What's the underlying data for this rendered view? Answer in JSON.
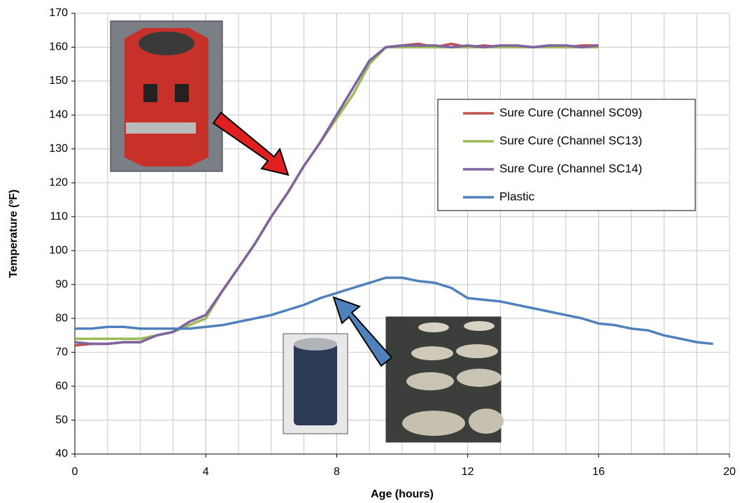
{
  "chart_data": {
    "type": "line",
    "x_label": "Age (hours)",
    "y_label": "Temperature (ºF)",
    "x": [
      0,
      0.5,
      1,
      1.5,
      2,
      2.5,
      3,
      3.5,
      4,
      4.5,
      5,
      5.5,
      6,
      6.5,
      7,
      7.5,
      8,
      8.5,
      9,
      9.5,
      10,
      10.5,
      11,
      11.5,
      12,
      12.5,
      13,
      13.5,
      14,
      14.5,
      15,
      15.5,
      16,
      16.5,
      17,
      17.5,
      18,
      18.5,
      19,
      19.5
    ],
    "series": [
      {
        "name": "Sure Cure (Channel SC09)",
        "color": "#c0504d",
        "values": [
          72,
          72.5,
          72.5,
          73,
          73,
          75,
          76,
          79,
          81,
          88,
          95,
          102,
          110,
          117,
          125,
          132,
          140,
          148,
          156,
          160,
          160.5,
          161,
          160,
          161,
          160,
          160.5,
          160,
          160.5,
          160,
          160.5,
          160,
          160.5,
          160.5,
          null,
          null,
          null,
          null,
          null,
          null,
          null
        ]
      },
      {
        "name": "Sure Cure (Channel SC13)",
        "color": "#9bbb59",
        "values": [
          74,
          74,
          74,
          74,
          74,
          75,
          76,
          78,
          80,
          88,
          95,
          102,
          110,
          117,
          125,
          132,
          139,
          146,
          155,
          160,
          160,
          160,
          160,
          160,
          160,
          160,
          160,
          160,
          160,
          160,
          160,
          160,
          160,
          null,
          null,
          null,
          null,
          null,
          null,
          null
        ]
      },
      {
        "name": "Sure Cure (Channel SC14)",
        "color": "#8064a2",
        "values": [
          73,
          72.5,
          72.5,
          73,
          73,
          75,
          76,
          79,
          81,
          88,
          95,
          102,
          110,
          117,
          125,
          132,
          140,
          148,
          156,
          160,
          160.5,
          160.5,
          160.5,
          160,
          160.5,
          160,
          160.5,
          160.5,
          160,
          160.5,
          160.5,
          160,
          160.5,
          null,
          null,
          null,
          null,
          null,
          null,
          null
        ]
      },
      {
        "name": "Plastic",
        "color": "#4f81bd",
        "values": [
          77,
          77,
          77.5,
          77.5,
          77,
          77,
          77,
          77,
          77.5,
          78,
          79,
          80,
          81,
          82.5,
          84,
          86,
          87.5,
          89,
          90.5,
          92,
          92,
          91,
          90.5,
          89,
          86,
          85.5,
          85,
          84,
          83,
          82,
          81,
          80,
          78.5,
          78,
          77,
          76.5,
          75,
          74,
          73,
          72.5
        ]
      }
    ],
    "xlim": [
      0,
      20
    ],
    "xticks": [
      0,
      4,
      8,
      12,
      16,
      20
    ],
    "ylim": [
      40,
      170
    ],
    "yticks": [
      40,
      50,
      60,
      70,
      80,
      90,
      100,
      110,
      120,
      130,
      140,
      150,
      160,
      170
    ],
    "grid": true,
    "legend_position": "upper right"
  }
}
